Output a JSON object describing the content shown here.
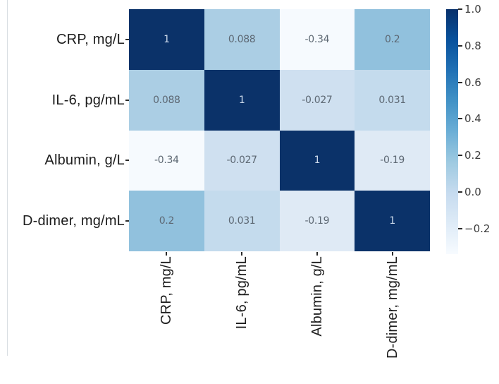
{
  "figure": {
    "kind": "correlation-heatmap",
    "background": "#ffffff"
  },
  "chart_data": {
    "type": "heatmap",
    "title": "",
    "xlabel": "",
    "ylabel": "",
    "x_categories": [
      "CRP, mg/L",
      "IL-6, pg/mL",
      "Albumin, g/L",
      "D-dimer, mg/mL"
    ],
    "y_categories": [
      "CRP, mg/L",
      "IL-6, pg/mL",
      "Albumin, g/L",
      "D-dimer, mg/mL"
    ],
    "matrix": [
      [
        1,
        0.088,
        -0.34,
        0.2
      ],
      [
        0.088,
        1,
        -0.027,
        0.031
      ],
      [
        -0.34,
        -0.027,
        1,
        -0.19
      ],
      [
        0.2,
        0.031,
        -0.19,
        1
      ]
    ],
    "cell_labels": [
      [
        "1",
        "0.088",
        "-0.34",
        "0.2"
      ],
      [
        "0.088",
        "1",
        "-0.027",
        "0.031"
      ],
      [
        "-0.34",
        "-0.027",
        "1",
        "-0.19"
      ],
      [
        "0.2",
        "0.031",
        "-0.19",
        "1"
      ]
    ],
    "cell_colors": [
      [
        "#0b3269",
        "#abcee4",
        "#f6fafe",
        "#91c1dd"
      ],
      [
        "#abcee4",
        "#0b3269",
        "#cfe0f0",
        "#c4dbed"
      ],
      [
        "#f6fafe",
        "#cfe0f0",
        "#0b3269",
        "#dfeaf5"
      ],
      [
        "#91c1dd",
        "#c4dbed",
        "#dfeaf5",
        "#0b3269"
      ]
    ],
    "cell_text_colors": [
      [
        "#cedbec",
        "#5d6873",
        "#5d6873",
        "#5d6873"
      ],
      [
        "#5d6873",
        "#cedbec",
        "#5d6873",
        "#5d6873"
      ],
      [
        "#5d6873",
        "#5d6873",
        "#cedbec",
        "#5d6873"
      ],
      [
        "#5d6873",
        "#5d6873",
        "#5d6873",
        "#cedbec"
      ]
    ],
    "colormap": "Blues",
    "vmin": -0.34,
    "vmax": 1.0,
    "grid": false,
    "legend_position": "right-colorbar",
    "colorbar": {
      "tick_labels": [
        "1.0",
        "0.8",
        "0.6",
        "0.4",
        "0.2",
        "0.0",
        "−0.2"
      ],
      "tick_values": [
        1.0,
        0.8,
        0.6,
        0.4,
        0.2,
        0.0,
        -0.2
      ],
      "gradient_top_to_bottom": [
        "#08306b",
        "#08519c",
        "#2171b5",
        "#4292c6",
        "#6baed6",
        "#9ecae1",
        "#c6dbef",
        "#deebf7",
        "#f7fbff"
      ]
    }
  },
  "colors": {
    "axis_label": "#1c1c1c",
    "tick": "#2b2b2b",
    "colorbar_tick_label": "#3c3c3c",
    "stray_table_border": "#d9dee3"
  }
}
